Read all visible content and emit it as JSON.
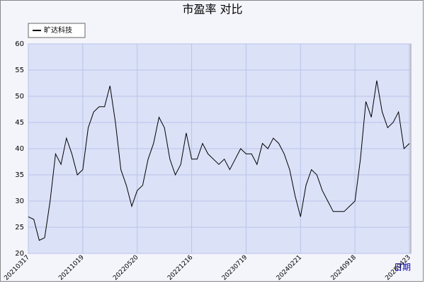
{
  "chart_data": {
    "type": "line",
    "title": "市盈率  对比",
    "x_label": "日期",
    "categories": [
      "20210317",
      null,
      null,
      null,
      null,
      null,
      null,
      null,
      null,
      null,
      "20211019",
      null,
      null,
      null,
      null,
      null,
      null,
      null,
      null,
      null,
      "20220520",
      null,
      null,
      null,
      null,
      null,
      null,
      null,
      null,
      null,
      "20221216",
      null,
      null,
      null,
      null,
      null,
      null,
      null,
      null,
      null,
      "20230719",
      null,
      null,
      null,
      null,
      null,
      null,
      null,
      null,
      null,
      "20240221",
      null,
      null,
      null,
      null,
      null,
      null,
      null,
      null,
      null,
      "20240918",
      null,
      null,
      null,
      null,
      null,
      null,
      null,
      null,
      null,
      "20250423"
    ],
    "series": [
      {
        "name": "旷达科技",
        "color": "#000000",
        "values": [
          27,
          26.5,
          22.5,
          23,
          30,
          39,
          37,
          42,
          39,
          35,
          36,
          44,
          47,
          48,
          48,
          52,
          45,
          36,
          33,
          29,
          32,
          33,
          38,
          41,
          46,
          44,
          38,
          35,
          37,
          43,
          38,
          38,
          41,
          39,
          38,
          37,
          38,
          36,
          38,
          40,
          39,
          39,
          37,
          41,
          40,
          42,
          41,
          39,
          36,
          31,
          27,
          33,
          36,
          35,
          32,
          30,
          28,
          28,
          28,
          29,
          30,
          38,
          49,
          46,
          53,
          47,
          44,
          45,
          47,
          40,
          41
        ]
      }
    ],
    "ylim": [
      20,
      60
    ],
    "yticks": [
      20,
      25,
      30,
      35,
      40,
      45,
      50,
      55,
      60
    ],
    "grid": true,
    "legend": "top-left"
  }
}
